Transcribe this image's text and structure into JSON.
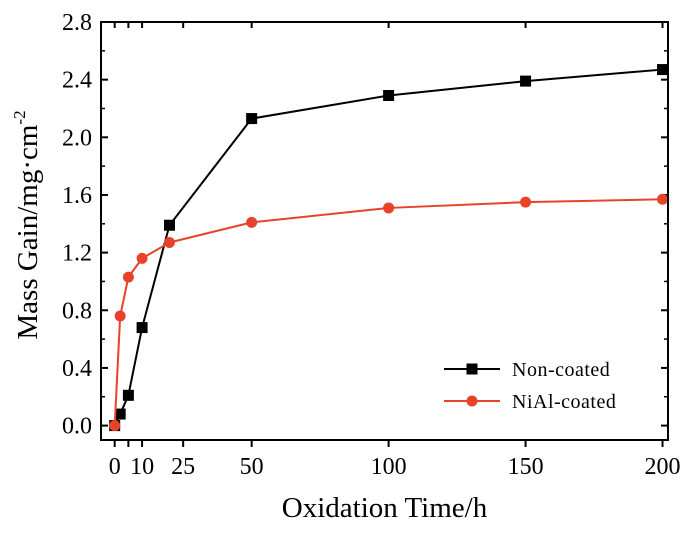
{
  "chart_data": {
    "type": "line",
    "xlabel": "Oxidation Time/h",
    "ylabel": "Mass Gain/mg·cm",
    "ylabel_superscript": "-2",
    "xlim": [
      -5,
      202
    ],
    "ylim": [
      -0.1,
      2.8
    ],
    "x_ticks": [
      0,
      5,
      10,
      25,
      50,
      100,
      150,
      200
    ],
    "x_tick_labels": [
      "0",
      "",
      "10",
      "25",
      "50",
      "100",
      "150",
      "200"
    ],
    "y_ticks": [
      0.0,
      0.4,
      0.8,
      1.2,
      1.6,
      2.0,
      2.4,
      2.8
    ],
    "y_tick_labels": [
      "0.0",
      "0.4",
      "0.8",
      "1.2",
      "1.6",
      "2.0",
      "2.4",
      "2.8"
    ],
    "legend_position": "bottom-right",
    "grid": false,
    "series": [
      {
        "name": "Non-coated",
        "color": "#000000",
        "marker": "square",
        "x": [
          0,
          2,
          5,
          10,
          20,
          50,
          100,
          150,
          200
        ],
        "y": [
          0.0,
          0.08,
          0.21,
          0.68,
          1.39,
          2.13,
          2.29,
          2.39,
          2.47
        ]
      },
      {
        "name": "NiAl-coated",
        "color": "#e8432a",
        "marker": "circle",
        "x": [
          0,
          2,
          5,
          10,
          20,
          50,
          100,
          150,
          200
        ],
        "y": [
          0.0,
          0.76,
          1.03,
          1.16,
          1.27,
          1.41,
          1.51,
          1.55,
          1.57
        ]
      }
    ]
  }
}
